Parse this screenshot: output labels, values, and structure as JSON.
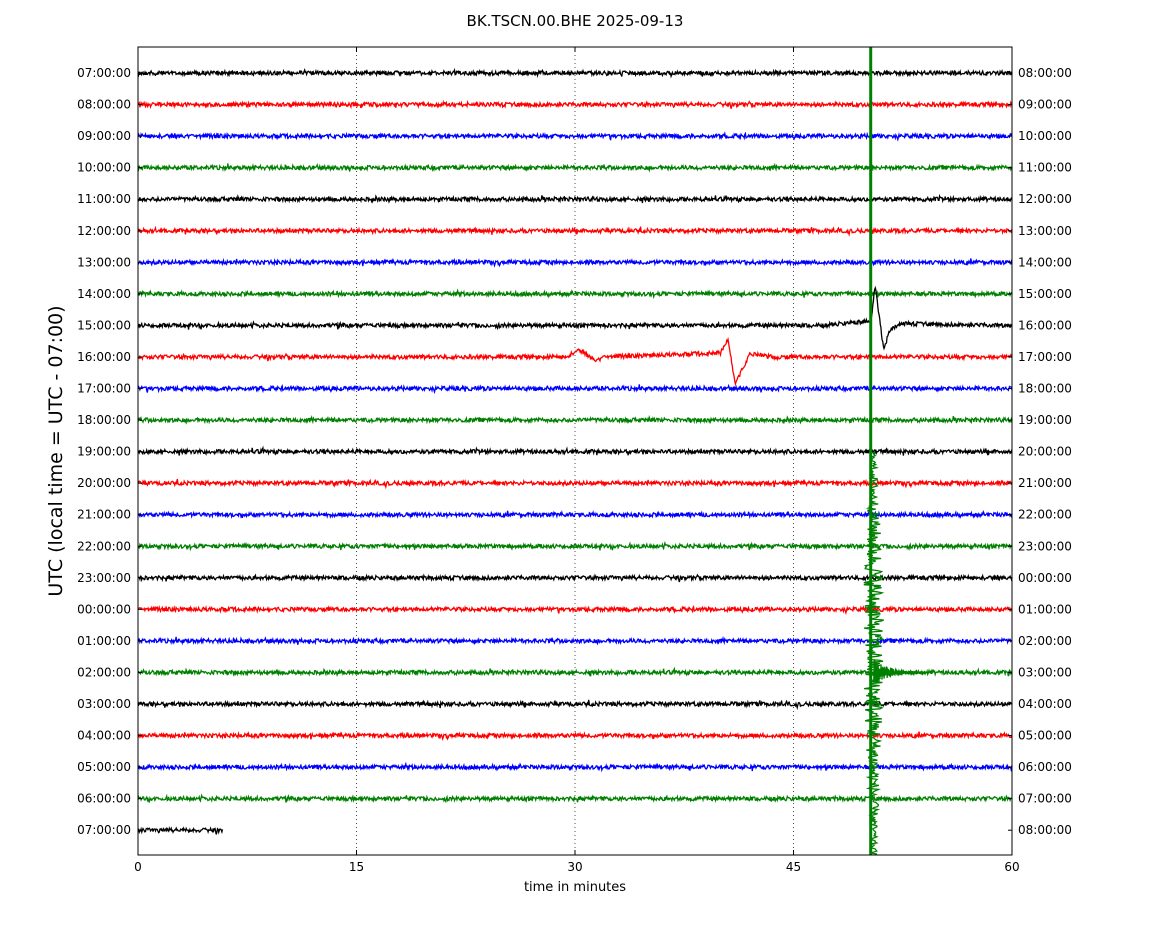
{
  "chart_data": {
    "type": "line",
    "title": "BK.TSCN.00.BHE 2025-09-13",
    "xlabel": "time in minutes",
    "ylabel": "UTC (local time = UTC - 07:00)",
    "xlim": [
      0,
      60
    ],
    "xticks": [
      0,
      15,
      30,
      45,
      60
    ],
    "grid": "vertical dotted lines at 15-minute intervals",
    "color_cycle": [
      "#000000",
      "#ff0000",
      "#0000ff",
      "#008000"
    ],
    "left_labels": [
      "07:00:00",
      "08:00:00",
      "09:00:00",
      "10:00:00",
      "11:00:00",
      "12:00:00",
      "13:00:00",
      "14:00:00",
      "15:00:00",
      "16:00:00",
      "17:00:00",
      "18:00:00",
      "19:00:00",
      "20:00:00",
      "21:00:00",
      "22:00:00",
      "23:00:00",
      "00:00:00",
      "01:00:00",
      "02:00:00",
      "03:00:00",
      "04:00:00",
      "05:00:00",
      "06:00:00",
      "07:00:00"
    ],
    "right_labels": [
      "08:00:00",
      "09:00:00",
      "10:00:00",
      "11:00:00",
      "12:00:00",
      "13:00:00",
      "14:00:00",
      "15:00:00",
      "16:00:00",
      "17:00:00",
      "18:00:00",
      "19:00:00",
      "20:00:00",
      "21:00:00",
      "22:00:00",
      "23:00:00",
      "00:00:00",
      "01:00:00",
      "02:00:00",
      "03:00:00",
      "04:00:00",
      "05:00:00",
      "06:00:00",
      "07:00:00",
      "08:00:00"
    ],
    "last_trace_end_minute": 5.8,
    "events": [
      {
        "trace": 8,
        "minute": 50.4,
        "description": "large long-period excursion"
      },
      {
        "trace": 9,
        "minute": 30.0,
        "description": "small excursion"
      },
      {
        "trace": 9,
        "minute": 40.5,
        "description": "long-period excursion"
      },
      {
        "trace": 19,
        "minute": 50.5,
        "description": "large earthquake signal, clipped, spanning multiple traces"
      }
    ]
  }
}
